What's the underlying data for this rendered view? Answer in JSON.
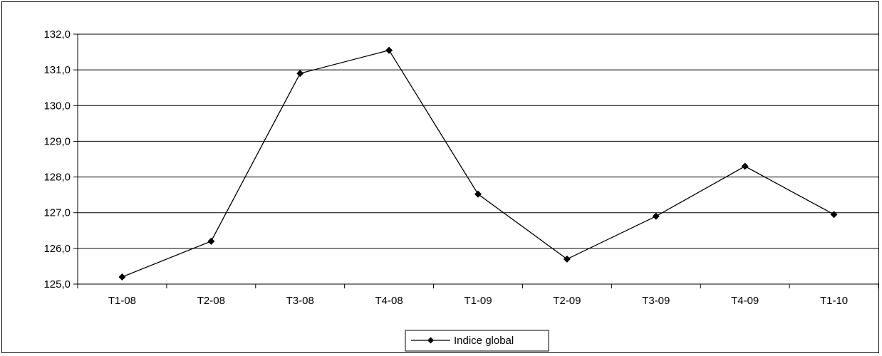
{
  "chart_data": {
    "type": "line",
    "categories": [
      "T1-08",
      "T2-08",
      "T3-08",
      "T4-08",
      "T1-09",
      "T2-09",
      "T3-09",
      "T4-09",
      "T1-10"
    ],
    "series": [
      {
        "name": "Indice global",
        "values": [
          125.2,
          126.2,
          130.9,
          131.55,
          127.52,
          125.7,
          126.9,
          128.3,
          126.95
        ],
        "color": "#000000",
        "marker": "diamond"
      }
    ],
    "ylim": [
      125.0,
      132.0
    ],
    "yticks": [
      "125,0",
      "126,0",
      "127,0",
      "128,0",
      "129,0",
      "130,0",
      "131,0",
      "132,0"
    ],
    "grid": true,
    "legend_position": "bottom-center"
  }
}
